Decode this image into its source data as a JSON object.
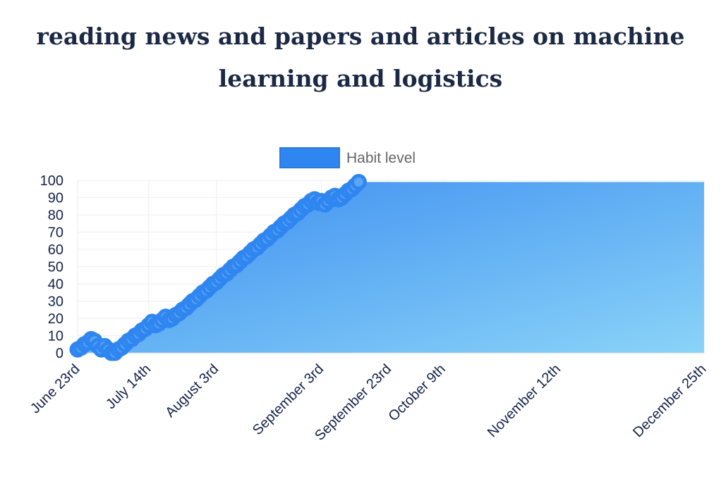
{
  "title_lines": [
    "reading news and papers and articles on machine",
    "learning and logistics"
  ],
  "colors": {
    "title": "#1b2945",
    "axis_text": "#15224a",
    "legend_text": "#666666",
    "line": "#2f86f0",
    "point_fill": "#5aa5f5",
    "area_start": "#3b8cf0",
    "area_end": "#8ad3f8",
    "grid": "#eeeeee"
  },
  "chart_data": {
    "type": "area",
    "title": "reading news and papers and articles on machine learning and logistics",
    "legend": {
      "position": "top",
      "entries": [
        {
          "label": "Habit level",
          "color": "#2f86f0"
        }
      ]
    },
    "grid": true,
    "ylim": [
      0,
      100
    ],
    "yticks": [
      0,
      10,
      20,
      30,
      40,
      50,
      60,
      70,
      80,
      90,
      100
    ],
    "xlim": [
      "2023-06-23",
      "2023-12-25"
    ],
    "xticks": [
      {
        "date": "2023-06-23",
        "label": "June 23rd"
      },
      {
        "date": "2023-07-14",
        "label": "July 14th"
      },
      {
        "date": "2023-08-03",
        "label": "August 3rd"
      },
      {
        "date": "2023-09-03",
        "label": "September 3rd"
      },
      {
        "date": "2023-09-23",
        "label": "September 23rd"
      },
      {
        "date": "2023-10-09",
        "label": "October 9th"
      },
      {
        "date": "2023-11-12",
        "label": "November 12th"
      },
      {
        "date": "2023-12-25",
        "label": "December 25th"
      }
    ],
    "area_extends_to": "2023-12-25",
    "series": [
      {
        "name": "Habit level",
        "points": [
          [
            "2023-06-23",
            2
          ],
          [
            "2023-06-24",
            3
          ],
          [
            "2023-06-25",
            5
          ],
          [
            "2023-06-26",
            6
          ],
          [
            "2023-06-27",
            8
          ],
          [
            "2023-06-28",
            7
          ],
          [
            "2023-06-29",
            4
          ],
          [
            "2023-06-30",
            2
          ],
          [
            "2023-07-01",
            4
          ],
          [
            "2023-07-02",
            2
          ],
          [
            "2023-07-03",
            0
          ],
          [
            "2023-07-04",
            0
          ],
          [
            "2023-07-05",
            2
          ],
          [
            "2023-07-06",
            3
          ],
          [
            "2023-07-07",
            5
          ],
          [
            "2023-07-08",
            7
          ],
          [
            "2023-07-09",
            8
          ],
          [
            "2023-07-10",
            10
          ],
          [
            "2023-07-11",
            11
          ],
          [
            "2023-07-12",
            13
          ],
          [
            "2023-07-13",
            14
          ],
          [
            "2023-07-14",
            16
          ],
          [
            "2023-07-15",
            18
          ],
          [
            "2023-07-16",
            16
          ],
          [
            "2023-07-17",
            17
          ],
          [
            "2023-07-18",
            19
          ],
          [
            "2023-07-19",
            21
          ],
          [
            "2023-07-20",
            19
          ],
          [
            "2023-07-21",
            20
          ],
          [
            "2023-07-22",
            22
          ],
          [
            "2023-07-23",
            23
          ],
          [
            "2023-07-24",
            25
          ],
          [
            "2023-07-25",
            26
          ],
          [
            "2023-07-26",
            28
          ],
          [
            "2023-07-27",
            30
          ],
          [
            "2023-07-28",
            31
          ],
          [
            "2023-07-29",
            33
          ],
          [
            "2023-07-30",
            35
          ],
          [
            "2023-07-31",
            36
          ],
          [
            "2023-08-01",
            38
          ],
          [
            "2023-08-02",
            40
          ],
          [
            "2023-08-03",
            41
          ],
          [
            "2023-08-04",
            43
          ],
          [
            "2023-08-05",
            45
          ],
          [
            "2023-08-06",
            46
          ],
          [
            "2023-08-07",
            48
          ],
          [
            "2023-08-08",
            50
          ],
          [
            "2023-08-09",
            51
          ],
          [
            "2023-08-10",
            53
          ],
          [
            "2023-08-11",
            55
          ],
          [
            "2023-08-12",
            56
          ],
          [
            "2023-08-13",
            58
          ],
          [
            "2023-08-14",
            60
          ],
          [
            "2023-08-15",
            61
          ],
          [
            "2023-08-16",
            63
          ],
          [
            "2023-08-17",
            65
          ],
          [
            "2023-08-18",
            66
          ],
          [
            "2023-08-19",
            68
          ],
          [
            "2023-08-20",
            70
          ],
          [
            "2023-08-21",
            71
          ],
          [
            "2023-08-22",
            73
          ],
          [
            "2023-08-23",
            75
          ],
          [
            "2023-08-24",
            76
          ],
          [
            "2023-08-25",
            78
          ],
          [
            "2023-08-26",
            80
          ],
          [
            "2023-08-27",
            81
          ],
          [
            "2023-08-28",
            83
          ],
          [
            "2023-08-29",
            85
          ],
          [
            "2023-08-30",
            86
          ],
          [
            "2023-08-31",
            88
          ],
          [
            "2023-09-01",
            89
          ],
          [
            "2023-09-02",
            87
          ],
          [
            "2023-09-03",
            88
          ],
          [
            "2023-09-04",
            86
          ],
          [
            "2023-09-05",
            88
          ],
          [
            "2023-09-06",
            90
          ],
          [
            "2023-09-07",
            91
          ],
          [
            "2023-09-08",
            89
          ],
          [
            "2023-09-09",
            90
          ],
          [
            "2023-09-10",
            92
          ],
          [
            "2023-09-11",
            94
          ],
          [
            "2023-09-12",
            95
          ],
          [
            "2023-09-13",
            97
          ],
          [
            "2023-09-14",
            99
          ]
        ]
      }
    ]
  }
}
